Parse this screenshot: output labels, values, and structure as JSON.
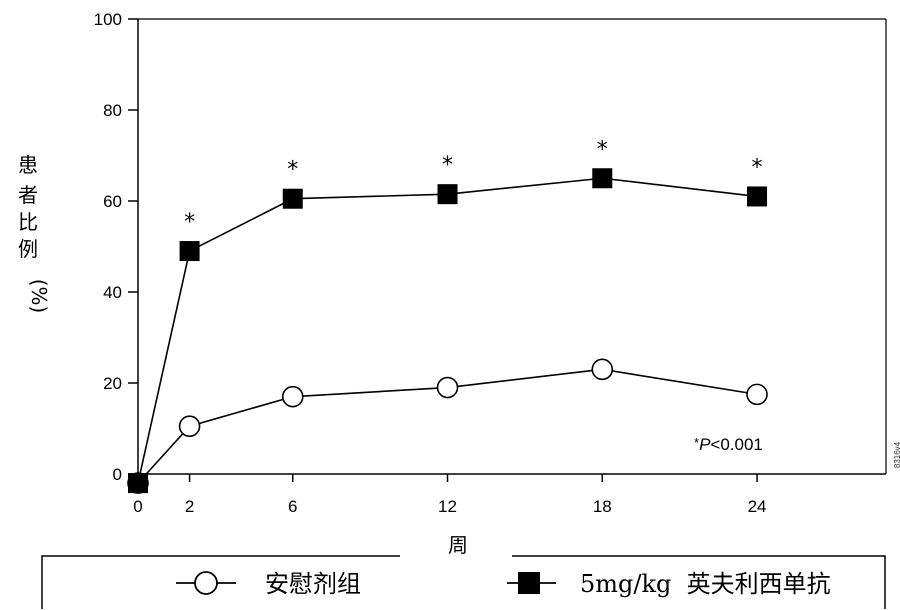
{
  "chart_data": {
    "type": "line",
    "x": [
      0,
      2,
      6,
      12,
      18,
      24
    ],
    "xlabel": "周",
    "ylabel_chars": [
      "患",
      "者",
      "比",
      "例",
      "(%)"
    ],
    "ylim": [
      0,
      100
    ],
    "yticks": [
      0,
      20,
      40,
      60,
      80,
      100
    ],
    "xticks": [
      0,
      2,
      6,
      12,
      18,
      24
    ],
    "grid": false,
    "series": [
      {
        "name": "安慰剂组",
        "marker": "open-circle",
        "values": [
          -2,
          10.5,
          17,
          19,
          23,
          17.5
        ]
      },
      {
        "name": "5mg/kg  英夫利西单抗",
        "marker": "filled-square",
        "values": [
          -2,
          49,
          60.5,
          61.5,
          65,
          61
        ]
      }
    ],
    "significance_marks": {
      "symbol": "*",
      "x": [
        2,
        6,
        12,
        18,
        24
      ]
    },
    "annotation": {
      "star": "*",
      "p_italic": "P",
      "rest": "<0.001"
    },
    "side_code": "8316v4",
    "legend_position": "bottom"
  },
  "colors": {
    "line": "#000000",
    "background": "#ffffff"
  }
}
